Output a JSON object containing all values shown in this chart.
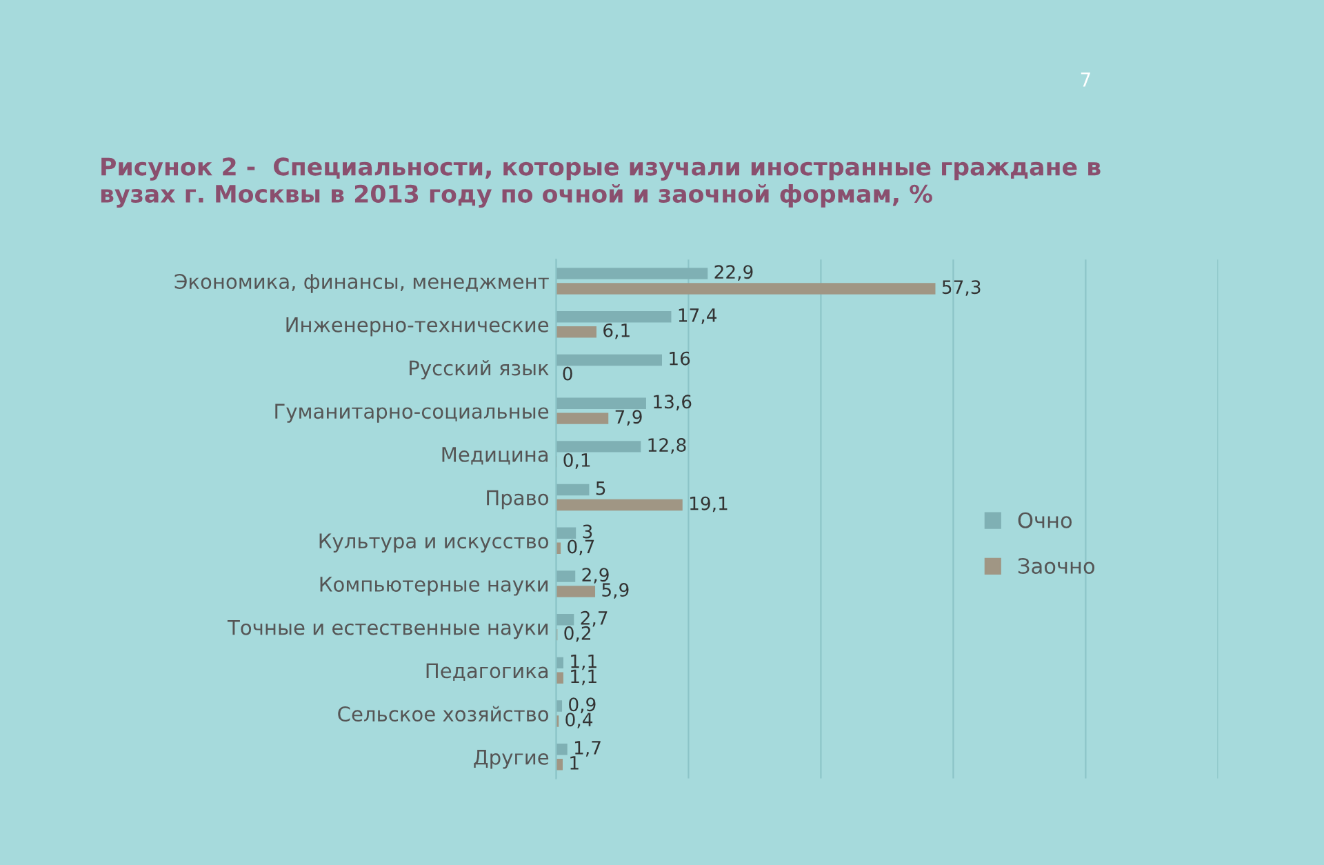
{
  "chart_data": {
    "type": "bar",
    "orientation": "horizontal",
    "title": "Рисунок 2 -  Специальности, которые изучали иностранные граждане в\nвузах г. Москвы в 2013 году по очной и заочной формам, %",
    "categories": [
      "Экономика, финансы, менеджмент",
      "Инженерно-технические",
      "Русский язык",
      "Гуманитарно-социальные",
      "Медицина",
      "Право",
      "Культура и искусство",
      "Компьютерные науки",
      "Точные и естественные науки",
      "Педагогика",
      "Сельское хозяйство",
      "Другие"
    ],
    "series": [
      {
        "name": "Очно",
        "color": "#7fb0b4",
        "values": [
          22.9,
          17.4,
          16,
          13.6,
          12.8,
          5,
          3,
          2.9,
          2.7,
          1.1,
          0.9,
          1.7
        ],
        "value_labels": [
          "22,9",
          "17,4",
          "16",
          "13,6",
          "12,8",
          "5",
          "3",
          "2,9",
          "2,7",
          "1,1",
          "0,9",
          "1,7"
        ]
      },
      {
        "name": "Заочно",
        "color": "#a09684",
        "values": [
          57.3,
          6.1,
          0,
          7.9,
          0.1,
          19.1,
          0.7,
          5.9,
          0.2,
          1.1,
          0.4,
          1
        ],
        "value_labels": [
          "57,3",
          "6,1",
          "0",
          "7,9",
          "0,1",
          "19,1",
          "0,7",
          "5,9",
          "0,2",
          "1,1",
          "0,4",
          "1"
        ]
      }
    ],
    "xlim": [
      0,
      100
    ],
    "xticks": [
      {
        "value": 0,
        "label": null
      },
      {
        "value": 20,
        "label": null
      },
      {
        "value": 40,
        "label": null
      },
      {
        "value": 60,
        "label": null
      },
      {
        "value": 80,
        "label": null
      },
      {
        "value": 100,
        "label": null
      }
    ],
    "tick_labels": "y",
    "grid": "x",
    "legend": "right",
    "annotations": [
      "7"
    ]
  }
}
